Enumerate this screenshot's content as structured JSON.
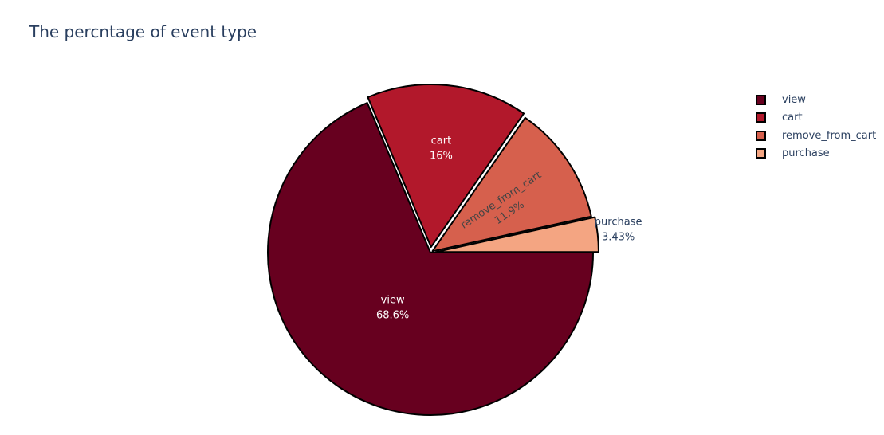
{
  "chart_data": {
    "type": "pie",
    "title": "The percntage of event type",
    "slices": [
      {
        "label": "view",
        "percent": 68.6,
        "percent_text": "68.6%",
        "color": "#67001f",
        "text_color": "#ffffff",
        "label_position": "inside"
      },
      {
        "label": "cart",
        "percent": 16.0,
        "percent_text": "16%",
        "color": "#b2182b",
        "text_color": "#ffffff",
        "label_position": "inside"
      },
      {
        "label": "remove_from_cart",
        "percent": 11.9,
        "percent_text": "11.9%",
        "color": "#d6604d",
        "text_color": "#444444",
        "label_position": "inside-radial"
      },
      {
        "label": "purchase",
        "percent": 3.43,
        "percent_text": "3.43%",
        "color": "#f4a582",
        "text_color": "#2a3f5f",
        "label_position": "outside"
      }
    ],
    "slice_border_color": "#000000",
    "legend_position": "right"
  }
}
